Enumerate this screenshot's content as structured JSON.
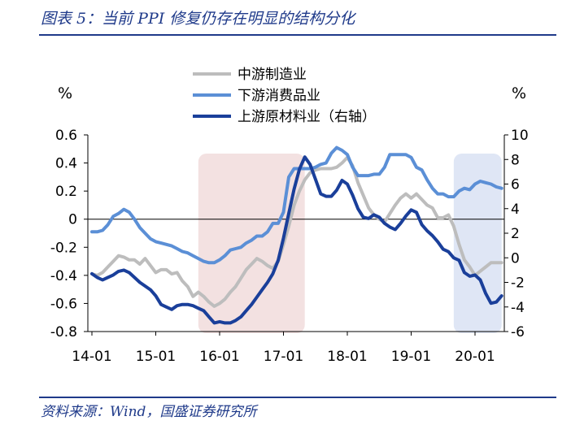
{
  "figure": {
    "title": "图表 5：当前 PPI 修复仍存在明显的结构分化",
    "source": "资料来源：Wind，国盛证券研究所"
  },
  "chart_data": {
    "type": "line",
    "title": "",
    "xlabel": "",
    "ylabel_left": "%",
    "ylabel_right": "%",
    "x_tick_labels": [
      "14-01",
      "15-01",
      "16-01",
      "17-01",
      "18-01",
      "19-01",
      "20-01"
    ],
    "y_left": {
      "ylim": [
        -0.8,
        0.6
      ],
      "ticks": [
        "0.6",
        "0.4",
        "0.2",
        "0",
        "-0.2",
        "-0.4",
        "-0.6",
        "-0.8"
      ]
    },
    "y_right": {
      "ylim": [
        -6,
        10
      ],
      "ticks": [
        "10",
        "8",
        "6",
        "4",
        "2",
        "0",
        "-2",
        "-4",
        "-6"
      ]
    },
    "shaded_regions": [
      {
        "start": "2015-09",
        "end": "2017-05",
        "color": "#f3e1e1"
      },
      {
        "start": "2019-09",
        "end": "2020-06",
        "color": "#dfe6f5"
      }
    ],
    "x_dates": [
      "2014-01",
      "2014-02",
      "2014-03",
      "2014-04",
      "2014-05",
      "2014-06",
      "2014-07",
      "2014-08",
      "2014-09",
      "2014-10",
      "2014-11",
      "2014-12",
      "2015-01",
      "2015-02",
      "2015-03",
      "2015-04",
      "2015-05",
      "2015-06",
      "2015-07",
      "2015-08",
      "2015-09",
      "2015-10",
      "2015-11",
      "2015-12",
      "2016-01",
      "2016-02",
      "2016-03",
      "2016-04",
      "2016-05",
      "2016-06",
      "2016-07",
      "2016-08",
      "2016-09",
      "2016-10",
      "2016-11",
      "2016-12",
      "2017-01",
      "2017-02",
      "2017-03",
      "2017-04",
      "2017-05",
      "2017-06",
      "2017-07",
      "2017-08",
      "2017-09",
      "2017-10",
      "2017-11",
      "2017-12",
      "2018-01",
      "2018-02",
      "2018-03",
      "2018-04",
      "2018-05",
      "2018-06",
      "2018-07",
      "2018-08",
      "2018-09",
      "2018-10",
      "2018-11",
      "2018-12",
      "2019-01",
      "2019-02",
      "2019-03",
      "2019-04",
      "2019-05",
      "2019-06",
      "2019-07",
      "2019-08",
      "2019-09",
      "2019-10",
      "2019-11",
      "2019-12",
      "2020-01",
      "2020-02",
      "2020-03",
      "2020-04",
      "2020-05",
      "2020-06"
    ],
    "series": [
      {
        "name": "中游制造业",
        "axis": "left",
        "color": "#bdbdbd",
        "values": [
          -0.39,
          -0.4,
          -0.38,
          -0.34,
          -0.3,
          -0.26,
          -0.27,
          -0.29,
          -0.29,
          -0.32,
          -0.28,
          -0.33,
          -0.38,
          -0.36,
          -0.36,
          -0.39,
          -0.38,
          -0.44,
          -0.48,
          -0.55,
          -0.52,
          -0.55,
          -0.59,
          -0.62,
          -0.6,
          -0.57,
          -0.52,
          -0.48,
          -0.42,
          -0.36,
          -0.32,
          -0.28,
          -0.3,
          -0.33,
          -0.35,
          -0.3,
          -0.18,
          -0.05,
          0.1,
          0.2,
          0.28,
          0.33,
          0.35,
          0.36,
          0.36,
          0.36,
          0.37,
          0.4,
          0.44,
          0.38,
          0.26,
          0.17,
          0.08,
          0.03,
          0.0,
          -0.02,
          0.04,
          0.1,
          0.15,
          0.18,
          0.15,
          0.18,
          0.14,
          0.1,
          0.08,
          0.01,
          0.01,
          0.03,
          -0.05,
          -0.18,
          -0.29,
          -0.34,
          -0.4,
          -0.37,
          -0.34,
          -0.31,
          -0.31,
          -0.31
        ]
      },
      {
        "name": "下游消费品业",
        "axis": "left",
        "color": "#5b8fd6",
        "values": [
          -0.09,
          -0.09,
          -0.08,
          -0.04,
          0.02,
          0.04,
          0.07,
          0.05,
          0.0,
          -0.06,
          -0.1,
          -0.14,
          -0.16,
          -0.17,
          -0.18,
          -0.19,
          -0.21,
          -0.23,
          -0.24,
          -0.26,
          -0.28,
          -0.3,
          -0.31,
          -0.31,
          -0.29,
          -0.26,
          -0.22,
          -0.21,
          -0.2,
          -0.17,
          -0.15,
          -0.12,
          -0.12,
          -0.09,
          -0.03,
          -0.03,
          0.05,
          0.3,
          0.36,
          0.36,
          0.36,
          0.36,
          0.37,
          0.39,
          0.4,
          0.47,
          0.51,
          0.49,
          0.46,
          0.37,
          0.31,
          0.31,
          0.31,
          0.32,
          0.32,
          0.37,
          0.46,
          0.46,
          0.46,
          0.46,
          0.44,
          0.37,
          0.35,
          0.28,
          0.22,
          0.18,
          0.18,
          0.16,
          0.16,
          0.2,
          0.22,
          0.21,
          0.25,
          0.27,
          0.26,
          0.25,
          0.23,
          0.22
        ]
      },
      {
        "name": "上游原材料业（右轴）",
        "axis": "right",
        "color": "#1a3f9a",
        "values": [
          -1.3,
          -1.6,
          -1.8,
          -1.6,
          -1.4,
          -1.1,
          -1.0,
          -1.2,
          -1.6,
          -2.0,
          -2.3,
          -2.6,
          -3.1,
          -3.8,
          -4.0,
          -4.2,
          -3.9,
          -3.8,
          -3.8,
          -3.9,
          -4.1,
          -4.3,
          -4.8,
          -5.3,
          -5.2,
          -5.3,
          -5.3,
          -5.1,
          -4.8,
          -4.3,
          -3.8,
          -3.2,
          -2.6,
          -2.0,
          -1.3,
          -0.2,
          1.6,
          3.6,
          5.6,
          7.2,
          8.2,
          7.6,
          6.4,
          5.2,
          5.0,
          5.0,
          5.5,
          6.3,
          6.0,
          5.1,
          4.0,
          3.3,
          3.2,
          3.5,
          3.3,
          2.8,
          2.5,
          2.3,
          2.8,
          3.4,
          3.9,
          3.7,
          2.7,
          2.2,
          1.8,
          1.3,
          0.7,
          0.5,
          0.0,
          -0.2,
          -1.2,
          -1.5,
          -1.4,
          -1.8,
          -2.9,
          -3.7,
          -3.6,
          -3.1
        ]
      }
    ],
    "legend": {
      "position": "top-center"
    }
  }
}
